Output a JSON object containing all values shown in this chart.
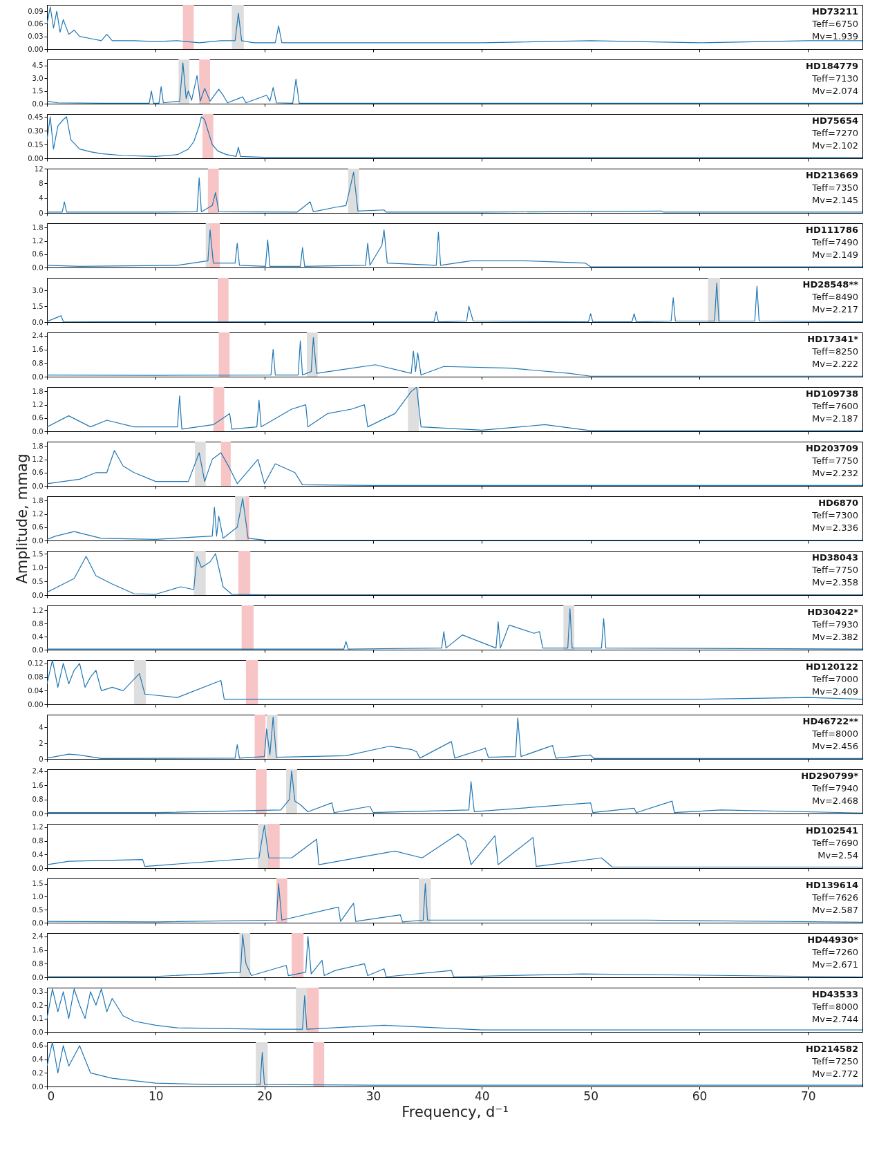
{
  "chart_data": [
    {
      "type": "line",
      "tick_labels": "y",
      "xlim": [
        0,
        75
      ],
      "xticks": [
        0,
        10,
        20,
        30,
        40,
        50,
        60,
        70
      ],
      "ylim": [
        0,
        0.105
      ],
      "yticks": [
        {
          "value": 0,
          "label": "0.00"
        },
        0.03,
        0.06,
        0.09
      ],
      "annotations": [
        "HD73211",
        "Teff=6750",
        "Mv=1.939"
      ],
      "bands": [
        {
          "axis": "x",
          "from": 12.5,
          "to": 13.5,
          "color": "#f7c5c6"
        },
        {
          "axis": "x",
          "from": 17.0,
          "to": 18.1,
          "color": "#dedede"
        }
      ],
      "series": [
        {
          "color": "#1f77b4",
          "x": [
            0,
            0.3,
            0.6,
            0.9,
            1.2,
            1.5,
            2,
            2.5,
            3,
            4,
            5,
            5.5,
            6,
            8,
            10,
            12,
            14,
            16,
            17.3,
            17.6,
            17.9,
            19,
            21,
            21.3,
            21.6,
            25,
            30,
            40,
            50,
            60,
            70,
            75
          ],
          "values": [
            0.06,
            0.1,
            0.05,
            0.09,
            0.04,
            0.07,
            0.035,
            0.045,
            0.03,
            0.025,
            0.02,
            0.035,
            0.02,
            0.02,
            0.018,
            0.02,
            0.015,
            0.02,
            0.02,
            0.085,
            0.02,
            0.015,
            0.015,
            0.055,
            0.015,
            0.015,
            0.015,
            0.015,
            0.02,
            0.015,
            0.02,
            0.02
          ]
        }
      ]
    },
    {
      "type": "line",
      "tick_labels": "y",
      "xlim": [
        0,
        75
      ],
      "xticks": [
        0,
        10,
        20,
        30,
        40,
        50,
        60,
        70
      ],
      "ylim": [
        0,
        5.2
      ],
      "yticks": [
        {
          "value": 0,
          "label": "0.0"
        },
        1.5,
        {
          "value": 3,
          "label": "3.0"
        },
        4.5
      ],
      "annotations": [
        "HD184779",
        "Teff=7130",
        "Mv=2.074"
      ],
      "bands": [
        {
          "axis": "x",
          "from": 12.1,
          "to": 13.1,
          "color": "#dedede"
        },
        {
          "axis": "x",
          "from": 14.0,
          "to": 15.0,
          "color": "#f7c5c6"
        }
      ],
      "series": [
        {
          "color": "#1f77b4",
          "x": [
            0,
            1,
            5,
            9.4,
            9.6,
            9.8,
            10.3,
            10.5,
            10.7,
            12.2,
            12.5,
            12.8,
            13.0,
            13.3,
            13.8,
            14.1,
            14.5,
            15.0,
            15.8,
            16.2,
            16.6,
            18.0,
            18.3,
            20.2,
            20.5,
            20.8,
            21.1,
            22.6,
            22.9,
            23.2,
            30,
            40,
            50,
            60,
            75
          ],
          "values": [
            0.3,
            0.1,
            0.05,
            0.05,
            1.5,
            0.05,
            0.05,
            2.0,
            0.1,
            0.3,
            4.8,
            0.6,
            1.5,
            0.4,
            3.3,
            0.3,
            1.8,
            0.3,
            1.7,
            1.0,
            0.1,
            0.8,
            0.1,
            1.0,
            0.3,
            1.9,
            0.1,
            0.05,
            2.9,
            0.05,
            0.05,
            0.05,
            0.05,
            0.05,
            0.05
          ]
        }
      ]
    },
    {
      "type": "line",
      "tick_labels": "y",
      "xlim": [
        0,
        75
      ],
      "xticks": [
        0,
        10,
        20,
        30,
        40,
        50,
        60,
        70
      ],
      "ylim": [
        0,
        0.48
      ],
      "yticks": [
        {
          "value": 0,
          "label": "0.00"
        },
        0.15,
        {
          "value": 0.3,
          "label": "0.30"
        },
        0.45
      ],
      "annotations": [
        "HD75654",
        "Teff=7270",
        "Mv=2.102"
      ],
      "bands": [
        {
          "axis": "x",
          "from": 14.3,
          "to": 15.3,
          "color": "#f7c5c6"
        }
      ],
      "series": [
        {
          "color": "#1f77b4",
          "x": [
            0,
            0.3,
            0.6,
            1,
            1.5,
            1.8,
            2.2,
            3,
            4,
            5,
            7,
            10,
            12,
            13,
            13.5,
            14,
            14.2,
            14.5,
            14.8,
            15.2,
            15.7,
            16.5,
            17.4,
            17.6,
            17.8,
            20,
            30,
            40,
            50,
            60,
            75
          ],
          "values": [
            0.2,
            0.45,
            0.1,
            0.35,
            0.42,
            0.45,
            0.2,
            0.1,
            0.07,
            0.05,
            0.03,
            0.02,
            0.04,
            0.1,
            0.18,
            0.35,
            0.45,
            0.42,
            0.3,
            0.15,
            0.08,
            0.04,
            0.02,
            0.12,
            0.02,
            0.01,
            0.01,
            0.01,
            0.01,
            0.01,
            0.01
          ]
        }
      ]
    },
    {
      "type": "line",
      "tick_labels": "y",
      "xlim": [
        0,
        75
      ],
      "xticks": [
        0,
        10,
        20,
        30,
        40,
        50,
        60,
        70
      ],
      "ylim": [
        0,
        12
      ],
      "yticks": [
        0,
        4,
        8,
        12
      ],
      "annotations": [
        "HD213669",
        "Teff=7350",
        "Mv=2.145"
      ],
      "bands": [
        {
          "axis": "x",
          "from": 14.8,
          "to": 15.8,
          "color": "#f7c5c6"
        },
        {
          "axis": "x",
          "from": 27.7,
          "to": 28.7,
          "color": "#dedede"
        }
      ],
      "series": [
        {
          "color": "#1f77b4",
          "x": [
            0,
            1.4,
            1.6,
            1.8,
            10,
            13.8,
            14.0,
            14.2,
            15.2,
            15.5,
            15.8,
            23,
            24.2,
            24.5,
            26.5,
            27.5,
            28.2,
            28.6,
            31,
            31.2,
            40,
            56.5,
            56.7,
            75
          ],
          "values": [
            0.2,
            0.2,
            3,
            0.2,
            0.2,
            0.3,
            9.5,
            0.3,
            2,
            5.5,
            0.3,
            0.2,
            3,
            0.3,
            1.5,
            2,
            11,
            0.5,
            0.8,
            0.2,
            0.2,
            0.5,
            0.2,
            0.2
          ]
        }
      ]
    },
    {
      "type": "line",
      "tick_labels": "y",
      "xlim": [
        0,
        75
      ],
      "xticks": [
        0,
        10,
        20,
        30,
        40,
        50,
        60,
        70
      ],
      "ylim": [
        0,
        2.0
      ],
      "yticks": [
        {
          "value": 0,
          "label": "0.0"
        },
        0.6,
        1.2,
        1.8
      ],
      "annotations": [
        "HD111786",
        "Teff=7490",
        "Mv=2.149"
      ],
      "bands": [
        {
          "axis": "x",
          "from": 14.6,
          "to": 15.6,
          "color": "#dedede"
        },
        {
          "axis": "x",
          "from": 15.0,
          "to": 15.9,
          "color": "#f7c5c6"
        }
      ],
      "series": [
        {
          "color": "#1f77b4",
          "x": [
            0,
            3,
            12,
            14.8,
            15.0,
            15.3,
            17.3,
            17.5,
            17.7,
            20.1,
            20.3,
            20.5,
            23.3,
            23.5,
            23.7,
            29.3,
            29.5,
            29.7,
            30.8,
            31.0,
            31.3,
            35.8,
            36.0,
            36.2,
            39,
            44,
            49.5,
            50,
            60,
            75
          ],
          "values": [
            0.1,
            0.05,
            0.1,
            0.3,
            1.7,
            0.2,
            0.2,
            1.1,
            0.1,
            0.05,
            1.25,
            0.05,
            0.05,
            0.9,
            0.05,
            0.1,
            1.1,
            0.1,
            1.0,
            1.7,
            0.2,
            0.1,
            1.6,
            0.1,
            0.3,
            0.3,
            0.2,
            0.03,
            0.03,
            0.03
          ]
        }
      ]
    },
    {
      "type": "line",
      "tick_labels": "y",
      "xlim": [
        0,
        75
      ],
      "xticks": [
        0,
        10,
        20,
        30,
        40,
        50,
        60,
        70
      ],
      "ylim": [
        0,
        4.2
      ],
      "yticks": [
        {
          "value": 0,
          "label": "0.0"
        },
        1.5,
        {
          "value": 3,
          "label": "3.0"
        }
      ],
      "annotations": [
        "HD28548**",
        "Teff=8490",
        "Mv=2.217"
      ],
      "bands": [
        {
          "axis": "x",
          "from": 15.7,
          "to": 16.7,
          "color": "#f7c5c6"
        },
        {
          "axis": "x",
          "from": 60.8,
          "to": 61.9,
          "color": "#dedede"
        }
      ],
      "series": [
        {
          "color": "#1f77b4",
          "x": [
            0,
            1.3,
            1.5,
            10,
            35.6,
            35.8,
            36,
            38.6,
            38.8,
            39.2,
            49.8,
            50,
            50.2,
            53.8,
            54,
            54.2,
            57.4,
            57.6,
            57.8,
            61.4,
            61.6,
            61.8,
            65.1,
            65.3,
            65.5,
            75
          ],
          "values": [
            0.05,
            0.6,
            0.05,
            0.02,
            0.02,
            1.0,
            0.02,
            0.1,
            1.5,
            0.1,
            0.02,
            0.8,
            0.02,
            0.02,
            0.8,
            0.02,
            0.1,
            2.3,
            0.1,
            0.1,
            3.7,
            0.1,
            0.1,
            3.4,
            0.1,
            0.02
          ]
        }
      ]
    },
    {
      "type": "line",
      "tick_labels": "y",
      "xlim": [
        0,
        75
      ],
      "xticks": [
        0,
        10,
        20,
        30,
        40,
        50,
        60,
        70
      ],
      "ylim": [
        0,
        2.6
      ],
      "yticks": [
        {
          "value": 0,
          "label": "0.0"
        },
        0.8,
        1.6,
        2.4
      ],
      "annotations": [
        "HD17341*",
        "Teff=8250",
        "Mv=2.222"
      ],
      "bands": [
        {
          "axis": "x",
          "from": 15.8,
          "to": 16.8,
          "color": "#f7c5c6"
        },
        {
          "axis": "x",
          "from": 23.9,
          "to": 24.9,
          "color": "#dedede"
        }
      ],
      "series": [
        {
          "color": "#1f77b4",
          "x": [
            0,
            10,
            20.6,
            20.8,
            21,
            23.1,
            23.3,
            23.5,
            24.3,
            24.5,
            24.8,
            30.2,
            33.5,
            33.7,
            33.9,
            34.1,
            34.4,
            36.5,
            42.6,
            48,
            50,
            60,
            75
          ],
          "values": [
            0.1,
            0.08,
            0.1,
            1.6,
            0.1,
            0.1,
            2.1,
            0.1,
            0.3,
            2.3,
            0.2,
            0.7,
            0.2,
            1.5,
            0.3,
            1.4,
            0.1,
            0.6,
            0.5,
            0.2,
            0.03,
            0.03,
            0.03
          ]
        }
      ]
    },
    {
      "type": "line",
      "tick_labels": "y",
      "xlim": [
        0,
        75
      ],
      "xticks": [
        0,
        10,
        20,
        30,
        40,
        50,
        60,
        70
      ],
      "ylim": [
        0,
        2.0
      ],
      "yticks": [
        {
          "value": 0,
          "label": "0.0"
        },
        0.6,
        1.2,
        1.8
      ],
      "annotations": [
        "HD109738",
        "Teff=7600",
        "Mv=2.187"
      ],
      "bands": [
        {
          "axis": "x",
          "from": 15.3,
          "to": 16.3,
          "color": "#f7c5c6"
        },
        {
          "axis": "x",
          "from": 33.2,
          "to": 34.2,
          "color": "#dedede"
        }
      ],
      "series": [
        {
          "color": "#1f77b4",
          "x": [
            0,
            2,
            4,
            5.5,
            8,
            12,
            12.2,
            12.4,
            15.3,
            16.8,
            17,
            19.3,
            19.5,
            19.7,
            22.5,
            23.8,
            24,
            25.8,
            28,
            29.2,
            29.5,
            32,
            33.5,
            34,
            34.4,
            40,
            45.8,
            50,
            60,
            75
          ],
          "values": [
            0.2,
            0.7,
            0.2,
            0.5,
            0.2,
            0.2,
            1.6,
            0.1,
            0.3,
            0.8,
            0.1,
            0.2,
            1.4,
            0.2,
            1.0,
            1.2,
            0.2,
            0.8,
            1.0,
            1.2,
            0.2,
            0.8,
            1.8,
            2.0,
            0.2,
            0.05,
            0.3,
            0.03,
            0.03,
            0.03
          ]
        }
      ]
    },
    {
      "type": "line",
      "tick_labels": "y",
      "xlim": [
        0,
        75
      ],
      "xticks": [
        0,
        10,
        20,
        30,
        40,
        50,
        60,
        70
      ],
      "ylim": [
        0,
        2.0
      ],
      "yticks": [
        {
          "value": 0,
          "label": "0.0"
        },
        0.6,
        1.2,
        1.8
      ],
      "annotations": [
        "HD203709",
        "Teff=7750",
        "Mv=2.232"
      ],
      "bands": [
        {
          "axis": "x",
          "from": 13.6,
          "to": 14.6,
          "color": "#dedede"
        },
        {
          "axis": "x",
          "from": 16.0,
          "to": 16.9,
          "color": "#f7c5c6"
        }
      ],
      "series": [
        {
          "color": "#1f77b4",
          "x": [
            0,
            3,
            4.5,
            5.5,
            6.2,
            7,
            8,
            10,
            13,
            14,
            14.5,
            15.2,
            16,
            16.8,
            17.5,
            19.4,
            20,
            21,
            22.8,
            23.5,
            30,
            50,
            75
          ],
          "values": [
            0.1,
            0.3,
            0.6,
            0.6,
            1.6,
            0.9,
            0.6,
            0.2,
            0.2,
            1.5,
            0.2,
            1.2,
            1.5,
            0.8,
            0.1,
            1.2,
            0.1,
            1.0,
            0.6,
            0.05,
            0.02,
            0.02,
            0.02
          ]
        }
      ]
    },
    {
      "type": "line",
      "tick_labels": "y",
      "xlim": [
        0,
        75
      ],
      "xticks": [
        0,
        10,
        20,
        30,
        40,
        50,
        60,
        70
      ],
      "ylim": [
        0,
        2.0
      ],
      "yticks": [
        {
          "value": 0,
          "label": "0.0"
        },
        0.6,
        1.2,
        1.8
      ],
      "ylabel": "Amplitude, mmag",
      "annotations": [
        "HD6870",
        "Teff=7300",
        "Mv=2.336"
      ],
      "bands": [
        {
          "axis": "x",
          "from": 17.6,
          "to": 18.6,
          "color": "#f7c5c6"
        },
        {
          "axis": "x",
          "from": 17.3,
          "to": 18.3,
          "color": "#dedede"
        }
      ],
      "series": [
        {
          "color": "#1f77b4",
          "x": [
            0,
            0.8,
            2.5,
            5,
            10,
            15.2,
            15.4,
            15.6,
            15.8,
            16.2,
            17.5,
            18,
            18.5,
            20,
            30,
            50,
            75
          ],
          "values": [
            0.05,
            0.2,
            0.4,
            0.1,
            0.05,
            0.2,
            1.5,
            0.2,
            1.1,
            0.1,
            0.6,
            1.9,
            0.1,
            0.02,
            0.01,
            0.01,
            0.01
          ]
        }
      ]
    },
    {
      "type": "line",
      "tick_labels": "y",
      "xlim": [
        0,
        75
      ],
      "xticks": [
        0,
        10,
        20,
        30,
        40,
        50,
        60,
        70
      ],
      "ylim": [
        0,
        1.6
      ],
      "yticks": [
        {
          "value": 0,
          "label": "0.0"
        },
        0.5,
        {
          "value": 1,
          "label": "1.0"
        },
        1.5
      ],
      "annotations": [
        "HD38043",
        "Teff=7750",
        "Mv=2.358"
      ],
      "bands": [
        {
          "axis": "x",
          "from": 13.5,
          "to": 14.6,
          "color": "#dedede"
        },
        {
          "axis": "x",
          "from": 17.6,
          "to": 18.7,
          "color": "#f7c5c6"
        }
      ],
      "series": [
        {
          "color": "#1f77b4",
          "x": [
            0,
            1,
            2.5,
            3.6,
            4.5,
            6,
            8,
            10,
            12.3,
            13.5,
            13.8,
            14.2,
            15,
            15.5,
            16.2,
            17,
            20,
            40,
            75
          ],
          "values": [
            0.1,
            0.3,
            0.6,
            1.4,
            0.7,
            0.4,
            0.05,
            0.03,
            0.3,
            0.2,
            1.4,
            1.0,
            1.2,
            1.5,
            0.3,
            0.03,
            0.01,
            0.01,
            0.01
          ]
        }
      ]
    },
    {
      "type": "line",
      "tick_labels": "y",
      "xlim": [
        0,
        75
      ],
      "xticks": [
        0,
        10,
        20,
        30,
        40,
        50,
        60,
        70
      ],
      "ylim": [
        0,
        1.35
      ],
      "yticks": [
        {
          "value": 0,
          "label": "0.0"
        },
        0.4,
        0.8,
        1.2
      ],
      "annotations": [
        "HD30422*",
        "Teff=7930",
        "Mv=2.382"
      ],
      "bands": [
        {
          "axis": "x",
          "from": 17.9,
          "to": 19.0,
          "color": "#f7c5c6"
        },
        {
          "axis": "x",
          "from": 47.5,
          "to": 48.5,
          "color": "#dedede"
        }
      ],
      "series": [
        {
          "color": "#1f77b4",
          "x": [
            0,
            27.3,
            27.5,
            27.7,
            36.3,
            36.5,
            36.7,
            38.2,
            41.3,
            41.5,
            41.7,
            42.5,
            44.8,
            45.3,
            45.6,
            47.9,
            48.1,
            48.3,
            51,
            51.2,
            51.4,
            75
          ],
          "values": [
            0.02,
            0.02,
            0.25,
            0.02,
            0.05,
            0.55,
            0.05,
            0.45,
            0.05,
            0.85,
            0.05,
            0.75,
            0.5,
            0.55,
            0.05,
            0.05,
            1.25,
            0.05,
            0.05,
            0.95,
            0.05,
            0.02
          ]
        }
      ]
    },
    {
      "type": "line",
      "tick_labels": "y",
      "xlim": [
        0,
        75
      ],
      "xticks": [
        0,
        10,
        20,
        30,
        40,
        50,
        60,
        70
      ],
      "ylim": [
        0,
        0.13
      ],
      "yticks": [
        {
          "value": 0,
          "label": "0.00"
        },
        0.04,
        0.08,
        0.12
      ],
      "annotations": [
        "HD120122",
        "Teff=7000",
        "Mv=2.409"
      ],
      "bands": [
        {
          "axis": "x",
          "from": 8.0,
          "to": 9.1,
          "color": "#dedede"
        },
        {
          "axis": "x",
          "from": 18.3,
          "to": 19.4,
          "color": "#f7c5c6"
        }
      ],
      "series": [
        {
          "color": "#1f77b4",
          "x": [
            0,
            0.5,
            1,
            1.5,
            2,
            2.5,
            3,
            3.5,
            4,
            4.5,
            5,
            6,
            7,
            8.5,
            9,
            12,
            16,
            16.3,
            20,
            30,
            40,
            50,
            60,
            70,
            75
          ],
          "values": [
            0.06,
            0.13,
            0.05,
            0.12,
            0.06,
            0.1,
            0.12,
            0.05,
            0.08,
            0.1,
            0.04,
            0.05,
            0.04,
            0.09,
            0.03,
            0.02,
            0.07,
            0.015,
            0.015,
            0.015,
            0.015,
            0.015,
            0.015,
            0.02,
            0.015
          ]
        }
      ]
    },
    {
      "type": "line",
      "tick_labels": "y",
      "xlim": [
        0,
        75
      ],
      "xticks": [
        0,
        10,
        20,
        30,
        40,
        50,
        60,
        70
      ],
      "ylim": [
        0,
        5.6
      ],
      "yticks": [
        0,
        2,
        4
      ],
      "annotations": [
        "HD46722**",
        "Teff=8000",
        "Mv=2.456"
      ],
      "bands": [
        {
          "axis": "x",
          "from": 19.1,
          "to": 20.1,
          "color": "#f7c5c6"
        },
        {
          "axis": "x",
          "from": 20.2,
          "to": 21.2,
          "color": "#dedede"
        }
      ],
      "series": [
        {
          "color": "#1f77b4",
          "x": [
            0,
            2,
            3,
            5,
            17.3,
            17.5,
            17.7,
            20.0,
            20.2,
            20.5,
            20.8,
            21.1,
            27.5,
            31.5,
            33.5,
            34,
            34.3,
            37.2,
            37.5,
            40,
            40.3,
            40.6,
            43.1,
            43.3,
            43.6,
            46.5,
            46.8,
            50,
            50.3,
            75
          ],
          "values": [
            0.1,
            0.6,
            0.5,
            0.05,
            0.1,
            1.8,
            0.1,
            0.3,
            3.8,
            0.5,
            5.3,
            0.2,
            0.4,
            1.6,
            1.2,
            0.9,
            0.1,
            2.2,
            0.1,
            1.2,
            1.4,
            0.2,
            0.3,
            5.2,
            0.3,
            1.7,
            0.1,
            0.5,
            0.05,
            0.05
          ]
        }
      ]
    },
    {
      "type": "line",
      "tick_labels": "y",
      "xlim": [
        0,
        75
      ],
      "xticks": [
        0,
        10,
        20,
        30,
        40,
        50,
        60,
        70
      ],
      "ylim": [
        0,
        2.5
      ],
      "yticks": [
        {
          "value": 0,
          "label": "0.0"
        },
        0.8,
        1.6,
        2.4
      ],
      "annotations": [
        "HD290799*",
        "Teff=7940",
        "Mv=2.468"
      ],
      "bands": [
        {
          "axis": "x",
          "from": 19.2,
          "to": 20.2,
          "color": "#f7c5c6"
        },
        {
          "axis": "x",
          "from": 22.0,
          "to": 23.0,
          "color": "#dedede"
        }
      ],
      "series": [
        {
          "color": "#1f77b4",
          "x": [
            0,
            10,
            21.5,
            22.3,
            22.5,
            22.8,
            23.3,
            24,
            26.2,
            26.4,
            29.7,
            30,
            38.8,
            39,
            39.3,
            50,
            50.2,
            54,
            54.2,
            57.5,
            57.7,
            62,
            75
          ],
          "values": [
            0.05,
            0.05,
            0.2,
            0.8,
            2.4,
            0.7,
            0.5,
            0.1,
            0.6,
            0.05,
            0.4,
            0.05,
            0.2,
            1.8,
            0.1,
            0.6,
            0.05,
            0.3,
            0.05,
            0.7,
            0.05,
            0.2,
            0.03
          ]
        }
      ]
    },
    {
      "type": "line",
      "tick_labels": "y",
      "xlim": [
        0,
        75
      ],
      "xticks": [
        0,
        10,
        20,
        30,
        40,
        50,
        60,
        70
      ],
      "ylim": [
        0,
        1.3
      ],
      "yticks": [
        {
          "value": 0,
          "label": "0.0"
        },
        0.4,
        0.8,
        1.2
      ],
      "annotations": [
        "HD102541",
        "Teff=7690",
        "Mv=2.54"
      ],
      "bands": [
        {
          "axis": "x",
          "from": 19.4,
          "to": 20.5,
          "color": "#dedede"
        },
        {
          "axis": "x",
          "from": 20.3,
          "to": 21.4,
          "color": "#f7c5c6"
        }
      ],
      "series": [
        {
          "color": "#1f77b4",
          "x": [
            0,
            2,
            8.8,
            9,
            19.5,
            19.8,
            20,
            20.4,
            22.5,
            24.8,
            25,
            32,
            34.5,
            37.8,
            38.5,
            39,
            41.2,
            41.5,
            44.7,
            45,
            51,
            52,
            75
          ],
          "values": [
            0.1,
            0.2,
            0.25,
            0.05,
            0.3,
            0.9,
            1.25,
            0.3,
            0.3,
            0.85,
            0.1,
            0.5,
            0.3,
            1.0,
            0.8,
            0.1,
            0.95,
            0.1,
            0.9,
            0.05,
            0.3,
            0.03,
            0.03
          ]
        }
      ]
    },
    {
      "type": "line",
      "tick_labels": "y",
      "xlim": [
        0,
        75
      ],
      "xticks": [
        0,
        10,
        20,
        30,
        40,
        50,
        60,
        70
      ],
      "ylim": [
        0,
        1.7
      ],
      "yticks": [
        {
          "value": 0,
          "label": "0.0"
        },
        0.5,
        {
          "value": 1,
          "label": "1.0"
        },
        1.5
      ],
      "annotations": [
        "HD139614",
        "Teff=7626",
        "Mv=2.587"
      ],
      "bands": [
        {
          "axis": "x",
          "from": 21.1,
          "to": 22.1,
          "color": "#f7c5c6"
        },
        {
          "axis": "x",
          "from": 34.2,
          "to": 35.3,
          "color": "#dedede"
        }
      ],
      "series": [
        {
          "color": "#1f77b4",
          "x": [
            0,
            10,
            21.1,
            21.3,
            21.6,
            26.8,
            27,
            28.2,
            28.4,
            32.5,
            32.7,
            34.6,
            34.8,
            35,
            55,
            75
          ],
          "values": [
            0.05,
            0.03,
            0.1,
            1.5,
            0.1,
            0.6,
            0.05,
            0.75,
            0.05,
            0.3,
            0.03,
            0.1,
            1.5,
            0.1,
            0.1,
            0.02
          ]
        }
      ]
    },
    {
      "type": "line",
      "tick_labels": "y",
      "xlim": [
        0,
        75
      ],
      "xticks": [
        0,
        10,
        20,
        30,
        40,
        50,
        60,
        70
      ],
      "ylim": [
        0,
        2.6
      ],
      "yticks": [
        {
          "value": 0,
          "label": "0.0"
        },
        0.8,
        1.6,
        2.4
      ],
      "annotations": [
        "HD44930*",
        "Teff=7260",
        "Mv=2.671"
      ],
      "bands": [
        {
          "axis": "x",
          "from": 17.7,
          "to": 18.7,
          "color": "#dedede"
        },
        {
          "axis": "x",
          "from": 22.5,
          "to": 23.6,
          "color": "#f7c5c6"
        }
      ],
      "series": [
        {
          "color": "#1f77b4",
          "x": [
            0,
            10,
            17.8,
            18,
            18.3,
            18.8,
            22,
            22.2,
            23.8,
            24,
            24.3,
            25.3,
            25.5,
            26.5,
            29.2,
            29.5,
            31,
            31.2,
            37.2,
            37.4,
            46,
            49.2,
            75
          ],
          "values": [
            0.05,
            0.05,
            0.3,
            2.5,
            0.8,
            0.1,
            0.7,
            0.1,
            0.3,
            2.4,
            0.2,
            1.0,
            0.1,
            0.4,
            0.8,
            0.1,
            0.5,
            0.03,
            0.4,
            0.03,
            0.15,
            0.2,
            0.02
          ]
        }
      ]
    },
    {
      "type": "line",
      "tick_labels": "y",
      "xlim": [
        0,
        75
      ],
      "xticks": [
        0,
        10,
        20,
        30,
        40,
        50,
        60,
        70
      ],
      "ylim": [
        0,
        0.33
      ],
      "yticks": [
        {
          "value": 0,
          "label": "0.0"
        },
        0.1,
        0.2,
        0.3
      ],
      "annotations": [
        "HD43533",
        "Teff=8000",
        "Mv=2.744"
      ],
      "bands": [
        {
          "axis": "x",
          "from": 22.9,
          "to": 24.0,
          "color": "#dedede"
        },
        {
          "axis": "x",
          "from": 23.9,
          "to": 25.0,
          "color": "#f7c5c6"
        }
      ],
      "series": [
        {
          "color": "#1f77b4",
          "x": [
            0,
            0.5,
            1,
            1.5,
            2,
            2.5,
            3,
            3.5,
            4,
            4.5,
            5,
            5.5,
            6,
            7,
            8,
            10,
            12,
            20,
            23.5,
            23.7,
            23.9,
            31,
            40,
            60,
            75
          ],
          "values": [
            0.1,
            0.32,
            0.15,
            0.3,
            0.1,
            0.32,
            0.2,
            0.1,
            0.3,
            0.2,
            0.32,
            0.15,
            0.25,
            0.12,
            0.08,
            0.05,
            0.03,
            0.02,
            0.02,
            0.27,
            0.02,
            0.05,
            0.015,
            0.015,
            0.015
          ]
        }
      ]
    },
    {
      "type": "line",
      "xlim": [
        0,
        75
      ],
      "xticks": [
        0,
        10,
        20,
        30,
        40,
        50,
        60,
        70
      ],
      "ylim": [
        0,
        0.65
      ],
      "yticks": [
        {
          "value": 0,
          "label": "0.0"
        },
        0.2,
        0.4,
        0.6
      ],
      "xlabel": "Frequency, d⁻¹",
      "annotations": [
        "HD214582",
        "Teff=7250",
        "Mv=2.772"
      ],
      "bands": [
        {
          "axis": "x",
          "from": 19.2,
          "to": 20.3,
          "color": "#dedede"
        },
        {
          "axis": "x",
          "from": 24.5,
          "to": 25.5,
          "color": "#f7c5c6"
        }
      ],
      "series": [
        {
          "color": "#1f77b4",
          "x": [
            0,
            0.5,
            1,
            1.5,
            2,
            2.5,
            3,
            4,
            6,
            10,
            15,
            19.6,
            19.8,
            20,
            30,
            50,
            75
          ],
          "values": [
            0.3,
            0.65,
            0.2,
            0.6,
            0.3,
            0.45,
            0.6,
            0.2,
            0.12,
            0.05,
            0.03,
            0.03,
            0.5,
            0.03,
            0.02,
            0.02,
            0.02
          ]
        }
      ]
    }
  ]
}
